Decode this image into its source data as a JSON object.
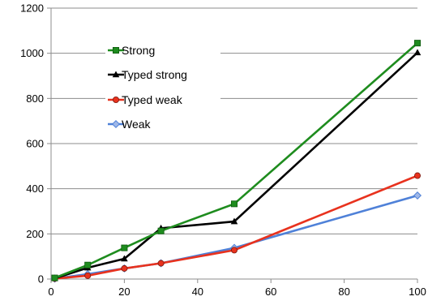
{
  "chart_data": {
    "type": "line",
    "title": "",
    "xlabel": "",
    "ylabel": "",
    "xlim": [
      0,
      100
    ],
    "ylim": [
      0,
      1200
    ],
    "x_ticks": [
      0,
      20,
      40,
      60,
      80,
      100
    ],
    "y_ticks": [
      0,
      200,
      400,
      600,
      800,
      1000,
      1200
    ],
    "grid": {
      "horizontal": true,
      "vertical": false
    },
    "legend_position": "upper-left inside",
    "series": [
      {
        "name": "Strong",
        "color": "#1e8c1e",
        "marker": "square",
        "x": [
          1,
          10,
          20,
          30,
          50,
          100
        ],
        "y": [
          5,
          62,
          138,
          213,
          333,
          1045
        ]
      },
      {
        "name": "Typed strong",
        "color": "#000000",
        "marker": "triangle",
        "x": [
          1,
          10,
          20,
          30,
          50,
          100
        ],
        "y": [
          3,
          50,
          90,
          225,
          255,
          1003
        ]
      },
      {
        "name": "Typed weak",
        "color": "#e8321e",
        "marker": "circle",
        "x": [
          1,
          10,
          20,
          30,
          50,
          100
        ],
        "y": [
          2,
          15,
          47,
          70,
          128,
          458
        ]
      },
      {
        "name": "Weak",
        "color": "#4f81d8",
        "marker": "diamond",
        "x": [
          1,
          10,
          20,
          30,
          50,
          100
        ],
        "y": [
          2,
          22,
          47,
          70,
          138,
          370
        ]
      }
    ]
  }
}
